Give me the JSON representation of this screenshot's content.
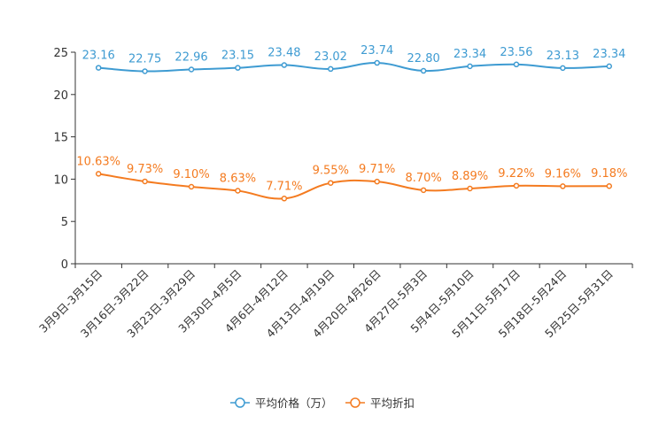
{
  "chart_data": {
    "type": "line",
    "title": "",
    "xlabel": "",
    "ylabel": "",
    "ylim": [
      0,
      25
    ],
    "yticks": [
      0,
      5,
      10,
      15,
      20,
      25
    ],
    "grid": false,
    "legend_position": "bottom-center",
    "categories": [
      "3月9日-3月15日",
      "3月16日-3月22日",
      "3月23日-3月29日",
      "3月30日-4月5日",
      "4月6日-4月12日",
      "4月13日-4月19日",
      "4月20日-4月26日",
      "4月27日-5月3日",
      "5月4日-5月10日",
      "5月11日-5月17日",
      "5月18日-5月24日",
      "5月25日-5月31日"
    ],
    "series": [
      {
        "name": "平均价格（万）",
        "color": "#3e9bd2",
        "values": [
          23.16,
          22.75,
          22.96,
          23.15,
          23.48,
          23.02,
          23.74,
          22.8,
          23.34,
          23.56,
          23.13,
          23.34
        ],
        "labels": [
          "23.16",
          "22.75",
          "22.96",
          "23.15",
          "23.48",
          "23.02",
          "23.74",
          "22.80",
          "23.34",
          "23.56",
          "23.13",
          "23.34"
        ]
      },
      {
        "name": "平均折扣",
        "color": "#f47b20",
        "values": [
          10.63,
          9.73,
          9.1,
          8.63,
          7.71,
          9.55,
          9.71,
          8.7,
          8.89,
          9.22,
          9.16,
          9.18
        ],
        "labels": [
          "10.63%",
          "9.73%",
          "9.10%",
          "8.63%",
          "7.71%",
          "9.55%",
          "9.71%",
          "8.70%",
          "8.89%",
          "9.22%",
          "9.16%",
          "9.18%"
        ]
      }
    ]
  }
}
